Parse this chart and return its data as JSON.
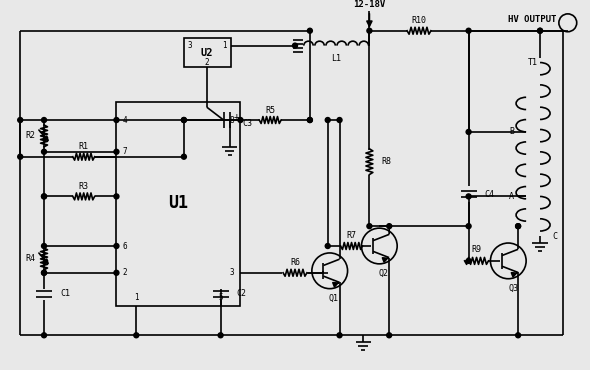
{
  "bg": "#e8e8e8",
  "lc": "#000000",
  "lw": 1.2,
  "figsize": [
    5.9,
    3.7
  ],
  "dpi": 100,
  "components": {
    "U1_label": "U1",
    "U2_label": "U2",
    "Q1_label": "Q1",
    "Q2_label": "Q2",
    "Q3_label": "Q3",
    "L1_label": "L1",
    "T1_label": "T1",
    "R1": "R1",
    "R2": "R2",
    "R3": "R3",
    "R4": "R4",
    "R5": "R5",
    "R6": "R6",
    "R7": "R7",
    "R8": "R8",
    "R9": "R9",
    "R10": "R10",
    "C1": "C1",
    "C2": "C2",
    "C3": "C3",
    "C4": "C4",
    "vcc": "12-18V",
    "hv": "HV OUTPUT"
  }
}
